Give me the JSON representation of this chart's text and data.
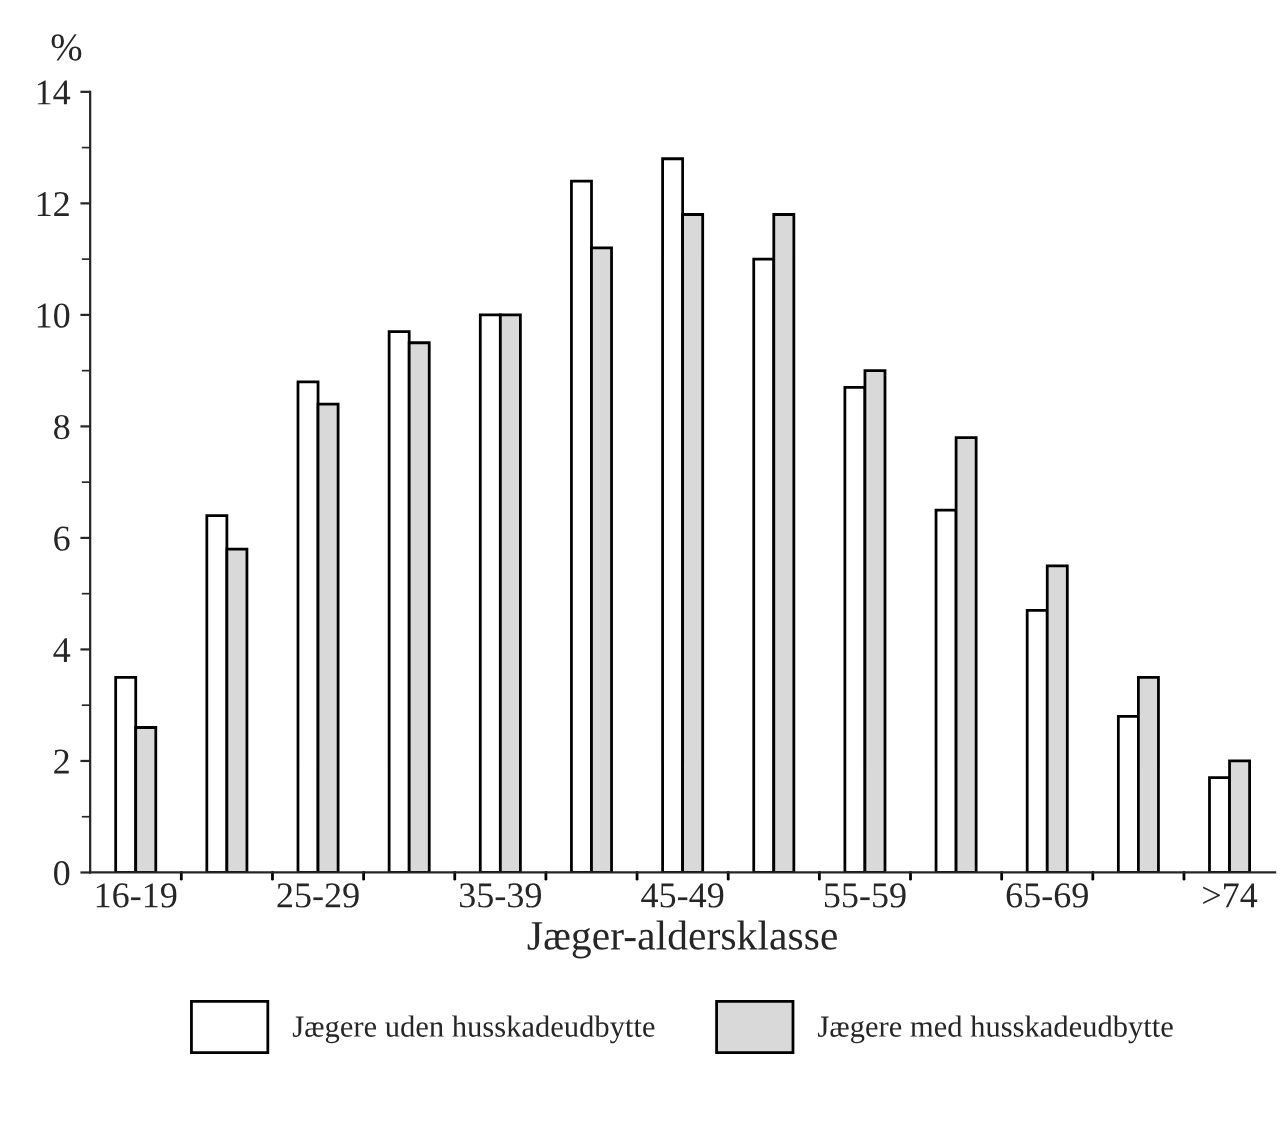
{
  "chart_data": {
    "type": "bar",
    "xlabel": "Jæger-aldersklasse",
    "ylabel": "%",
    "categories": [
      "16-19",
      null,
      "25-29",
      null,
      "35-39",
      null,
      "45-49",
      null,
      "55-59",
      null,
      "65-69",
      null,
      ">74"
    ],
    "series": [
      {
        "name": "Jægere uden husskadeudbytte",
        "color": "#ffffff",
        "values": [
          3.5,
          6.4,
          8.8,
          9.7,
          10.0,
          12.4,
          12.8,
          11.0,
          8.7,
          6.5,
          4.7,
          2.8,
          1.7
        ]
      },
      {
        "name": "Jægere med husskadeudbytte",
        "color": "#d9d9d9",
        "values": [
          2.6,
          5.8,
          8.4,
          9.5,
          10.0,
          11.2,
          11.8,
          11.8,
          9.0,
          7.8,
          5.5,
          3.5,
          2.0
        ]
      }
    ],
    "ylim": [
      0,
      14
    ],
    "yticks": [
      0,
      2,
      4,
      6,
      8,
      10,
      12,
      14
    ],
    "grid": false,
    "legend": "bottom"
  }
}
